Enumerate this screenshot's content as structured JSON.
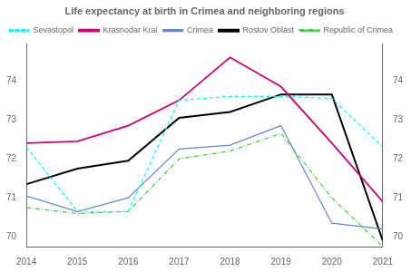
{
  "chart_data": {
    "type": "line",
    "title": "Life expectancy at birth in Crimea and neighboring regions",
    "x": [
      2014,
      2015,
      2016,
      2017,
      2018,
      2019,
      2020,
      2021
    ],
    "series": [
      {
        "name": "Sevastopol",
        "color": "cyan",
        "line_style": "dashed",
        "values": [
          72.3,
          70.65,
          70.65,
          73.5,
          73.6,
          73.6,
          73.55,
          72.3
        ]
      },
      {
        "name": "Krasnodar Krai",
        "color": "#cc0077",
        "line_style": "solid",
        "values": [
          72.4,
          72.45,
          72.85,
          73.5,
          74.6,
          73.85,
          72.4,
          70.9
        ]
      },
      {
        "name": "Crimea",
        "color": "#6688cc",
        "line_style": "solid",
        "values": [
          71.05,
          70.65,
          71.0,
          72.25,
          72.35,
          72.85,
          70.35,
          70.2
        ]
      },
      {
        "name": "Rostov Oblast",
        "color": "black",
        "line_style": "solid",
        "values": [
          71.35,
          71.75,
          71.95,
          73.05,
          73.2,
          73.65,
          73.65,
          69.9
        ]
      },
      {
        "name": "Republic of Crimea",
        "color": "#44cc44",
        "line_style": "dashdot",
        "values": [
          70.75,
          70.6,
          70.65,
          72.0,
          72.2,
          72.65,
          71.0,
          69.75
        ]
      }
    ],
    "xlim": [
      2014,
      2021
    ],
    "xticks": [
      2014,
      2015,
      2016,
      2017,
      2018,
      2019,
      2020,
      2021
    ],
    "ylim": [
      69.75,
      74.95
    ],
    "yticks": [
      70,
      71,
      72,
      73,
      74
    ],
    "y2lim": [
      69.75,
      74.95
    ],
    "y2ticks": [
      70,
      71,
      72,
      73,
      74
    ],
    "grid": false,
    "legend": "upper left"
  }
}
